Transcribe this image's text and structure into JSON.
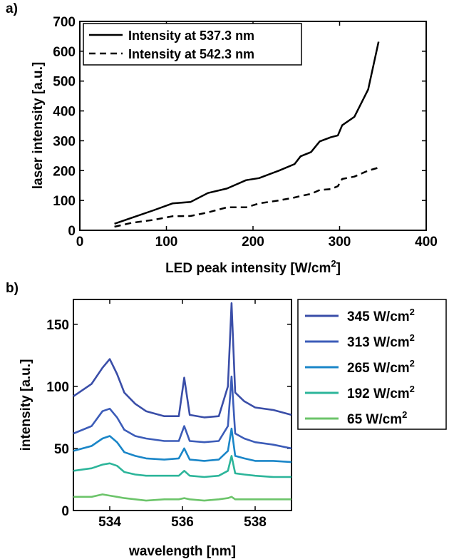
{
  "colors": {
    "black": "#000000",
    "s345": "#3a4ea8",
    "s313": "#3c5cb8",
    "s265": "#1a86c8",
    "s192": "#2cb59a",
    "s65": "#6cc46a"
  },
  "chart_data": [
    {
      "panel_label": "a)",
      "type": "line",
      "xlabel": "LED peak intensity [W/cm",
      "xlabel_sup": "2",
      "xlabel_suffix": "]",
      "ylabel": "laser intensity [a.u.]",
      "xlim": [
        0,
        400
      ],
      "ylim": [
        0,
        700
      ],
      "xticks": [
        0,
        100,
        200,
        300,
        400
      ],
      "yticks": [
        0,
        100,
        200,
        300,
        400,
        500,
        600,
        700
      ],
      "legend_position": "top-left",
      "series": [
        {
          "name": "Intensity at 537.3 nm",
          "style": "solid",
          "x": [
            40,
            60,
            85,
            107,
            128,
            148,
            170,
            192,
            207,
            230,
            248,
            255,
            267,
            277,
            290,
            298,
            303,
            317,
            333,
            345
          ],
          "y": [
            22,
            42,
            67,
            90,
            95,
            125,
            140,
            168,
            175,
            200,
            222,
            248,
            262,
            298,
            312,
            318,
            352,
            380,
            472,
            632
          ]
        },
        {
          "name": "Intensity at 542.3 nm",
          "style": "dashed",
          "x": [
            40,
            60,
            85,
            107,
            128,
            148,
            170,
            192,
            207,
            230,
            248,
            255,
            267,
            277,
            290,
            298,
            303,
            317,
            333,
            345
          ],
          "y": [
            12,
            25,
            35,
            47,
            48,
            60,
            77,
            77,
            90,
            100,
            110,
            115,
            122,
            135,
            138,
            148,
            172,
            180,
            200,
            210
          ]
        }
      ]
    },
    {
      "panel_label": "b)",
      "type": "line",
      "xlabel": "wavelength [nm]",
      "ylabel": "intensity [a.u.]",
      "xlim": [
        533,
        539
      ],
      "ylim": [
        0,
        170
      ],
      "xticks": [
        534,
        536,
        538
      ],
      "yticks": [
        0,
        50,
        100,
        150
      ],
      "legend_position": "outside-right",
      "series": [
        {
          "name": "345 W/cm",
          "sup": "2",
          "color_key": "s345",
          "x": [
            533,
            533.5,
            533.8,
            534.0,
            534.2,
            534.4,
            534.7,
            535.0,
            535.5,
            535.9,
            536.05,
            536.2,
            536.6,
            537.0,
            537.25,
            537.35,
            537.45,
            537.7,
            538.0,
            538.5,
            539
          ],
          "y": [
            92,
            102,
            115,
            122,
            110,
            95,
            86,
            80,
            76,
            76,
            107,
            77,
            75,
            76,
            100,
            167,
            95,
            88,
            83,
            81,
            77
          ]
        },
        {
          "name": "313 W/cm",
          "sup": "2",
          "color_key": "s313",
          "x": [
            533,
            533.5,
            533.8,
            534.0,
            534.2,
            534.4,
            534.7,
            535.0,
            535.5,
            535.9,
            536.05,
            536.2,
            536.6,
            537.0,
            537.25,
            537.35,
            537.45,
            537.7,
            538.0,
            538.5,
            539
          ],
          "y": [
            62,
            68,
            80,
            82,
            75,
            65,
            60,
            58,
            56,
            56,
            68,
            56,
            55,
            56,
            68,
            108,
            62,
            58,
            55,
            53,
            50
          ]
        },
        {
          "name": "265 W/cm",
          "sup": "2",
          "color_key": "s265",
          "x": [
            533,
            533.5,
            533.8,
            534.0,
            534.2,
            534.4,
            534.7,
            535.0,
            535.5,
            535.9,
            536.05,
            536.2,
            536.6,
            537.0,
            537.25,
            537.35,
            537.45,
            537.7,
            538.0,
            538.5,
            539
          ],
          "y": [
            48,
            52,
            58,
            60,
            55,
            47,
            44,
            42,
            41,
            42,
            50,
            41,
            40,
            41,
            48,
            66,
            44,
            42,
            40,
            40,
            39
          ]
        },
        {
          "name": "192 W/cm",
          "sup": "2",
          "color_key": "s192",
          "x": [
            533,
            533.5,
            533.8,
            534.0,
            534.2,
            534.4,
            534.7,
            535.0,
            535.5,
            535.9,
            536.05,
            536.2,
            536.6,
            537.0,
            537.25,
            537.35,
            537.45,
            537.7,
            538.0,
            538.5,
            539
          ],
          "y": [
            32,
            34,
            37,
            38,
            36,
            31,
            29,
            28,
            28,
            28,
            32,
            28,
            27,
            28,
            32,
            44,
            30,
            29,
            28,
            27,
            27
          ]
        },
        {
          "name": "65 W/cm",
          "sup": "2",
          "color_key": "s65",
          "x": [
            533,
            533.5,
            533.8,
            534.0,
            534.2,
            534.4,
            534.7,
            535.0,
            535.5,
            535.9,
            536.05,
            536.2,
            536.6,
            537.0,
            537.25,
            537.35,
            537.45,
            537.7,
            538.0,
            538.5,
            539
          ],
          "y": [
            11,
            11,
            13,
            12,
            11,
            10,
            9,
            8,
            9,
            9,
            10,
            9,
            8,
            9,
            10,
            11,
            9,
            9,
            9,
            9,
            9
          ]
        }
      ]
    }
  ]
}
